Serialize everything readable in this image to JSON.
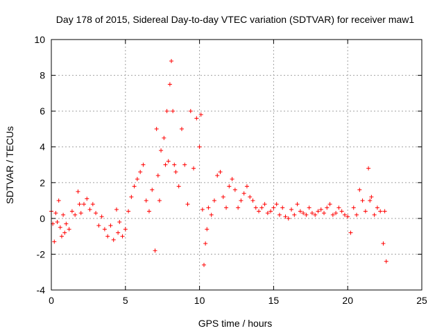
{
  "chart_data": {
    "type": "scatter",
    "title": "Day 178 of 2015, Sidereal Day-to-day VTEC variation (SDTVAR) for receiver maw1",
    "xlabel": "GPS time / hours",
    "ylabel": "SDTVAR / TECUs",
    "xlim": [
      0,
      25
    ],
    "ylim": [
      -4,
      10
    ],
    "xticks": [
      "0",
      "5",
      "10",
      "15",
      "20",
      "25"
    ],
    "yticks": [
      "-4",
      "-2",
      "0",
      "2",
      "4",
      "6",
      "8",
      "10"
    ],
    "grid": true,
    "legend": "none",
    "marker": "+",
    "colors": {
      "marker": "#ff0000",
      "grid": "#a0a0a0",
      "axis": "#000000"
    },
    "series": [
      {
        "name": "SDTVAR",
        "x": [
          0.0,
          0.1,
          0.2,
          0.3,
          0.4,
          0.5,
          0.6,
          0.7,
          0.8,
          0.9,
          1.0,
          1.2,
          1.4,
          1.6,
          1.8,
          1.9,
          2.0,
          2.2,
          2.4,
          2.6,
          2.8,
          3.0,
          3.2,
          3.4,
          3.6,
          3.8,
          4.0,
          4.2,
          4.4,
          4.5,
          4.6,
          4.8,
          5.0,
          5.2,
          5.4,
          5.6,
          5.8,
          6.0,
          6.2,
          6.4,
          6.6,
          6.8,
          7.0,
          7.1,
          7.2,
          7.3,
          7.4,
          7.6,
          7.7,
          7.8,
          7.9,
          8.0,
          8.1,
          8.2,
          8.3,
          8.4,
          8.6,
          8.8,
          9.0,
          9.2,
          9.4,
          9.6,
          9.8,
          10.0,
          10.1,
          10.2,
          10.3,
          10.4,
          10.5,
          10.6,
          10.8,
          11.0,
          11.2,
          11.4,
          11.6,
          11.8,
          12.0,
          12.2,
          12.4,
          12.6,
          12.8,
          13.0,
          13.2,
          13.4,
          13.6,
          13.8,
          14.0,
          14.2,
          14.4,
          14.6,
          14.8,
          15.0,
          15.2,
          15.4,
          15.6,
          15.8,
          16.0,
          16.2,
          16.4,
          16.6,
          16.8,
          17.0,
          17.2,
          17.4,
          17.6,
          17.8,
          18.0,
          18.2,
          18.4,
          18.6,
          18.8,
          19.0,
          19.2,
          19.4,
          19.6,
          19.8,
          20.0,
          20.2,
          20.4,
          20.6,
          20.8,
          21.0,
          21.2,
          21.4,
          21.5,
          21.6,
          21.8,
          22.0,
          22.2,
          22.4,
          22.5,
          22.6
        ],
        "y": [
          0.4,
          -0.3,
          -1.3,
          0.3,
          -0.2,
          1.0,
          -0.5,
          -1.0,
          0.2,
          -0.8,
          -0.3,
          -0.6,
          0.4,
          0.2,
          1.5,
          0.8,
          0.3,
          0.8,
          1.1,
          0.5,
          0.8,
          0.3,
          -0.4,
          0.1,
          -0.6,
          -1.0,
          -0.4,
          -1.2,
          0.5,
          -0.8,
          -0.2,
          -1.0,
          -0.6,
          0.4,
          1.2,
          1.8,
          2.2,
          2.6,
          3.0,
          1.0,
          0.4,
          1.6,
          -1.8,
          5.0,
          2.4,
          1.0,
          3.8,
          4.5,
          3.0,
          6.0,
          3.2,
          7.5,
          8.8,
          6.0,
          3.0,
          2.6,
          1.8,
          5.0,
          3.0,
          0.8,
          6.0,
          2.8,
          5.6,
          4.0,
          5.8,
          0.5,
          -2.6,
          -1.4,
          -0.6,
          0.6,
          0.2,
          1.0,
          2.4,
          2.6,
          1.2,
          0.6,
          1.8,
          2.2,
          1.6,
          0.6,
          1.0,
          1.4,
          1.8,
          1.2,
          1.0,
          0.6,
          0.4,
          0.6,
          0.8,
          0.3,
          0.4,
          0.6,
          0.8,
          0.2,
          0.6,
          0.1,
          0.0,
          0.5,
          0.2,
          0.8,
          0.4,
          0.3,
          0.2,
          0.6,
          0.3,
          0.2,
          0.4,
          0.5,
          0.3,
          0.6,
          0.8,
          0.2,
          0.3,
          0.6,
          0.4,
          0.2,
          0.1,
          -0.8,
          0.6,
          0.2,
          1.6,
          1.0,
          0.4,
          2.8,
          1.0,
          1.2,
          0.2,
          0.6,
          0.4,
          -1.4,
          0.4,
          -2.4
        ]
      }
    ]
  }
}
